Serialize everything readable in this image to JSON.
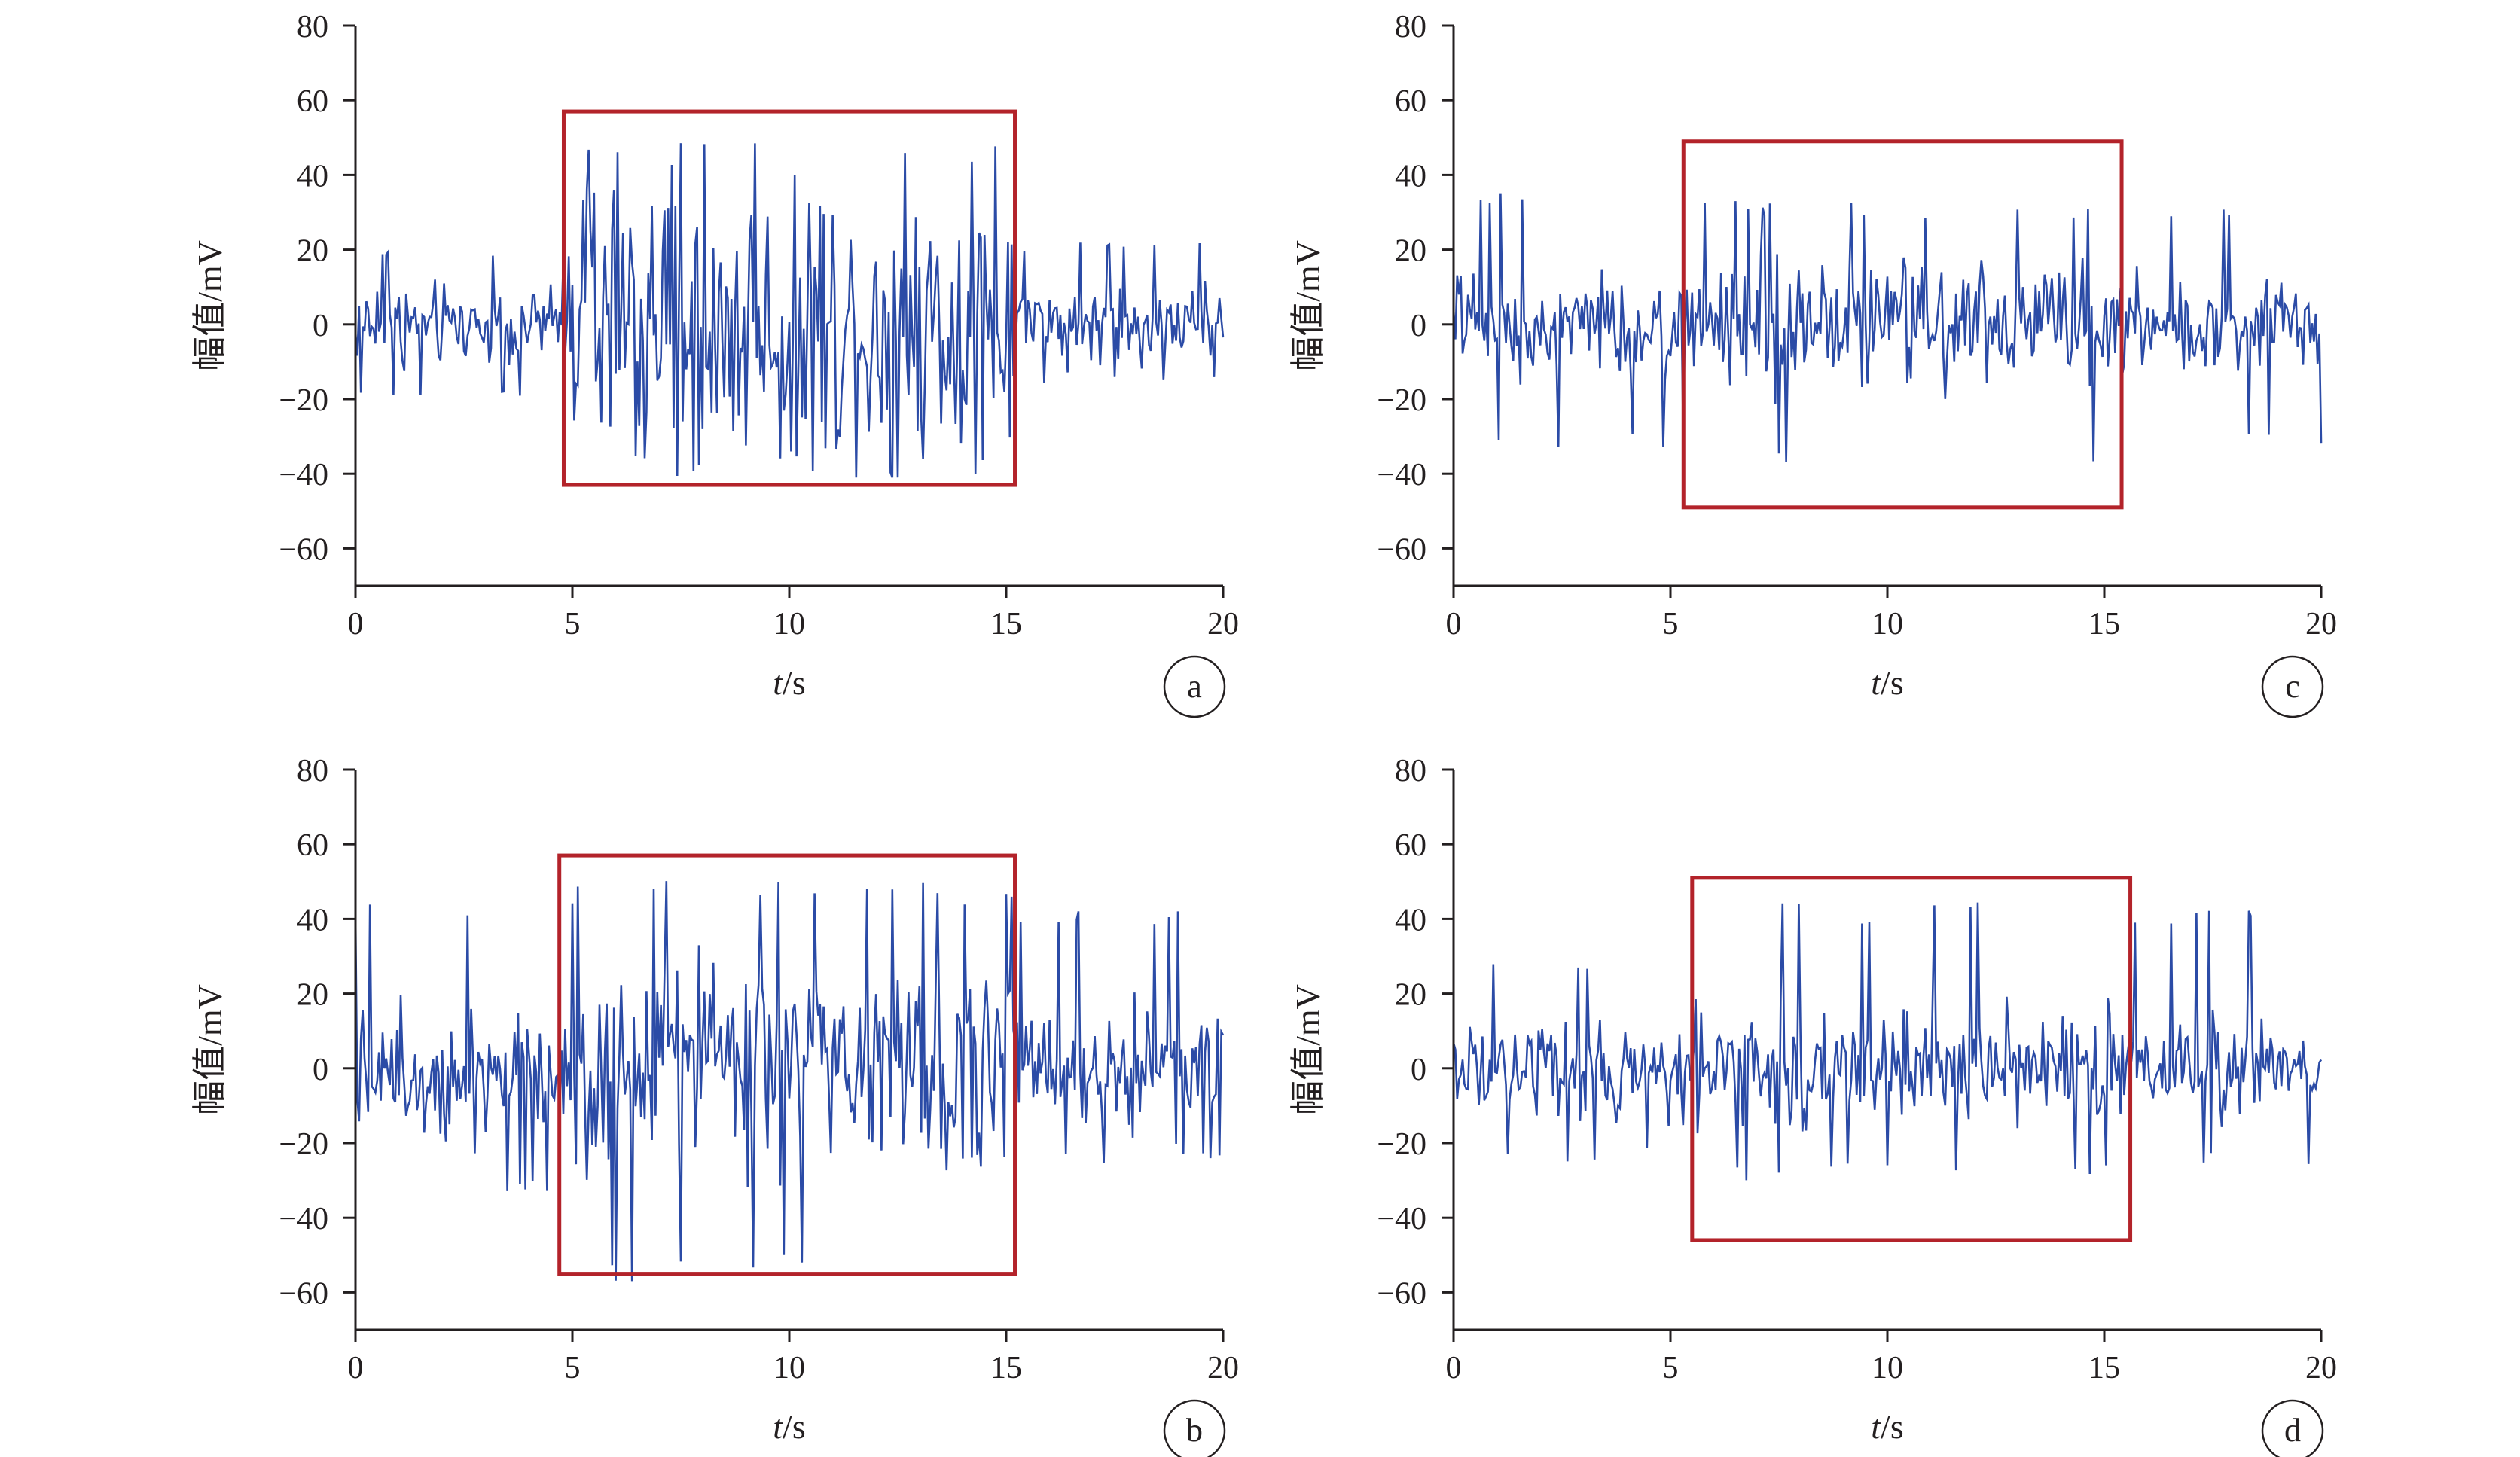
{
  "colors": {
    "signal": "#2b4ba6",
    "highlight_box": "#b3232a",
    "axis": "#231f20"
  },
  "axis_titles": {
    "x_italic": "t",
    "x_rest": "/s",
    "y": "幅值/mV"
  },
  "chart_data": [
    {
      "type": "line",
      "panel_label": "a",
      "xlim": [
        0,
        20
      ],
      "ylim": [
        -70,
        80
      ],
      "x_ticks": [
        0,
        5,
        10,
        15,
        20
      ],
      "y_ticks": [
        -60,
        -40,
        -20,
        0,
        20,
        40,
        60,
        80
      ],
      "x_tick_labels": [
        "0",
        "5",
        "10",
        "15",
        "20"
      ],
      "y_tick_labels": [
        "−60",
        "−40",
        "−20",
        "0",
        "20",
        "40",
        "60",
        "80"
      ],
      "xlabel": "t/s",
      "ylabel": "幅值/mV",
      "grid": false,
      "series": [
        {
          "x_start": 0,
          "x_end": 20,
          "samples": 480,
          "segments": [
            {
              "x": [
                0,
                4.9
              ],
              "amplitude": 10,
              "peak": 20,
              "trough": -20
            },
            {
              "x": [
                4.9,
                15.2
              ],
              "amplitude": 33,
              "peak": 51,
              "trough": -41
            },
            {
              "x": [
                15.2,
                20
              ],
              "amplitude": 9,
              "peak": 22,
              "trough": -16
            }
          ]
        }
      ],
      "highlight_box": {
        "x": [
          4.8,
          15.2
        ],
        "y": [
          -43,
          57
        ]
      }
    },
    {
      "type": "line",
      "panel_label": "b",
      "xlim": [
        0,
        20
      ],
      "ylim": [
        -70,
        80
      ],
      "x_ticks": [
        0,
        5,
        10,
        15,
        20
      ],
      "y_ticks": [
        -60,
        -40,
        -20,
        0,
        20,
        40,
        60,
        80
      ],
      "x_tick_labels": [
        "0",
        "5",
        "10",
        "15",
        "20"
      ],
      "y_tick_labels": [
        "−60",
        "−40",
        "−20",
        "0",
        "20",
        "40",
        "60",
        "80"
      ],
      "xlabel": "t/s",
      "ylabel": "幅值/mV",
      "grid": false,
      "series": [
        {
          "x_start": 0,
          "x_end": 20,
          "samples": 480,
          "segments": [
            {
              "x": [
                0,
                4.8
              ],
              "amplitude": 16,
              "peak": 44,
              "trough": -33
            },
            {
              "x": [
                4.8,
                15.2
              ],
              "amplitude": 24,
              "peak": 51,
              "trough": -57
            },
            {
              "x": [
                15.2,
                20
              ],
              "amplitude": 15,
              "peak": 44,
              "trough": -26
            }
          ]
        }
      ],
      "highlight_box": {
        "x": [
          4.7,
          15.2
        ],
        "y": [
          -55,
          57
        ]
      }
    },
    {
      "type": "line",
      "panel_label": "c",
      "xlim": [
        0,
        20
      ],
      "ylim": [
        -70,
        80
      ],
      "x_ticks": [
        0,
        5,
        10,
        15,
        20
      ],
      "y_ticks": [
        -60,
        -40,
        -20,
        0,
        20,
        40,
        60,
        80
      ],
      "x_tick_labels": [
        "0",
        "5",
        "10",
        "15",
        "20"
      ],
      "y_tick_labels": [
        "−60",
        "−40",
        "−20",
        "0",
        "20",
        "40",
        "60",
        "80"
      ],
      "xlabel": "t/s",
      "ylabel": "幅值/mV",
      "grid": false,
      "series": [
        {
          "x_start": 0,
          "x_end": 20,
          "samples": 480,
          "segments": [
            {
              "x": [
                0,
                5.3
              ],
              "amplitude": 12,
              "peak": 36,
              "trough": -33
            },
            {
              "x": [
                5.3,
                15.4
              ],
              "amplitude": 15,
              "peak": 33,
              "trough": -40
            },
            {
              "x": [
                15.4,
                20
              ],
              "amplitude": 12,
              "peak": 33,
              "trough": -34
            }
          ]
        }
      ],
      "highlight_box": {
        "x": [
          5.3,
          15.4
        ],
        "y": [
          -49,
          49
        ]
      }
    },
    {
      "type": "line",
      "panel_label": "d",
      "xlim": [
        0,
        20
      ],
      "ylim": [
        -70,
        80
      ],
      "x_ticks": [
        0,
        5,
        10,
        15,
        20
      ],
      "y_ticks": [
        -60,
        -40,
        -20,
        0,
        20,
        40,
        60,
        80
      ],
      "x_tick_labels": [
        "0",
        "5",
        "10",
        "15",
        "20"
      ],
      "y_tick_labels": [
        "−60",
        "−40",
        "−20",
        "0",
        "20",
        "40",
        "60",
        "80"
      ],
      "xlabel": "t/s",
      "ylabel": "幅值/mV",
      "grid": false,
      "series": [
        {
          "x_start": 0,
          "x_end": 20,
          "samples": 480,
          "segments": [
            {
              "x": [
                0,
                5.5
              ],
              "amplitude": 11,
              "peak": 31,
              "trough": -25
            },
            {
              "x": [
                5.5,
                15.6
              ],
              "amplitude": 14,
              "peak": 45,
              "trough": -30
            },
            {
              "x": [
                15.6,
                20
              ],
              "amplitude": 12,
              "peak": 44,
              "trough": -26
            }
          ]
        }
      ],
      "highlight_box": {
        "x": [
          5.5,
          15.6
        ],
        "y": [
          -46,
          51
        ]
      }
    }
  ]
}
